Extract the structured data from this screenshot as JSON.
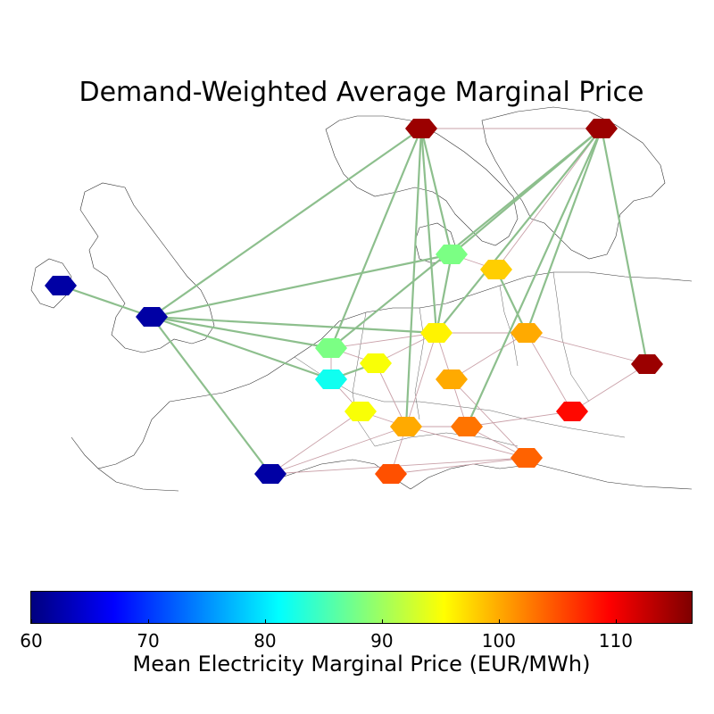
{
  "title": "Demand-Weighted Average Marginal Price",
  "colorbar": {
    "label": "Mean Electricity Marginal Price (EUR/MWh)",
    "min": 60,
    "max": 116.5,
    "ticks": [
      "60",
      "70",
      "80",
      "90",
      "100",
      "110"
    ],
    "colormap": "jet",
    "colors": [
      "#00007f",
      "#0000ff",
      "#007fff",
      "#00ffff",
      "#7fff7f",
      "#ffff00",
      "#ff7f00",
      "#ff0000",
      "#7f0000"
    ]
  },
  "nodes": [
    {
      "id": "IE",
      "price": 62
    },
    {
      "id": "GB",
      "price": 62
    },
    {
      "id": "NO",
      "price": 115
    },
    {
      "id": "SE",
      "price": 115
    },
    {
      "id": "DK",
      "price": 88
    },
    {
      "id": "DK-E",
      "price": 98
    },
    {
      "id": "NL",
      "price": 88
    },
    {
      "id": "BE",
      "price": 82
    },
    {
      "id": "LU",
      "price": 95
    },
    {
      "id": "DE",
      "price": 96
    },
    {
      "id": "PL",
      "price": 100
    },
    {
      "id": "LT",
      "price": 115
    },
    {
      "id": "CZ",
      "price": 100
    },
    {
      "id": "FR",
      "price": 95
    },
    {
      "id": "CH",
      "price": 100
    },
    {
      "id": "AT",
      "price": 103
    },
    {
      "id": "HU",
      "price": 109
    },
    {
      "id": "SI",
      "price": 104
    },
    {
      "id": "IT",
      "price": 105
    },
    {
      "id": "ES",
      "price": 62
    }
  ],
  "links": {
    "dc": [
      [
        "IE",
        "GB"
      ],
      [
        "GB",
        "NO"
      ],
      [
        "GB",
        "DK"
      ],
      [
        "GB",
        "NL"
      ],
      [
        "GB",
        "BE"
      ],
      [
        "GB",
        "DE"
      ],
      [
        "GB",
        "ES"
      ],
      [
        "NO",
        "NL"
      ],
      [
        "NO",
        "DE"
      ],
      [
        "NO",
        "DK"
      ],
      [
        "NO",
        "CH"
      ],
      [
        "SE",
        "DK"
      ],
      [
        "SE",
        "PL"
      ],
      [
        "SE",
        "LT"
      ],
      [
        "SE",
        "NL"
      ],
      [
        "SE",
        "DE"
      ],
      [
        "SE",
        "AT"
      ],
      [
        "DK",
        "DE"
      ],
      [
        "DK-E",
        "PL"
      ],
      [
        "BE",
        "LU"
      ]
    ],
    "ac": [
      [
        "NO",
        "SE"
      ],
      [
        "SE",
        "DK-E"
      ],
      [
        "DK",
        "DK-E"
      ],
      [
        "NL",
        "DE"
      ],
      [
        "NL",
        "BE"
      ],
      [
        "BE",
        "FR"
      ],
      [
        "NL",
        "LU"
      ],
      [
        "LU",
        "DE"
      ],
      [
        "DE",
        "PL"
      ],
      [
        "DE",
        "CZ"
      ],
      [
        "DE",
        "CH"
      ],
      [
        "PL",
        "LT"
      ],
      [
        "PL",
        "CZ"
      ],
      [
        "PL",
        "HU"
      ],
      [
        "CZ",
        "AT"
      ],
      [
        "LU",
        "CH"
      ],
      [
        "FR",
        "CH"
      ],
      [
        "CH",
        "AT"
      ],
      [
        "AT",
        "SI"
      ],
      [
        "AT",
        "HU"
      ],
      [
        "CH",
        "SI"
      ],
      [
        "HU",
        "LT"
      ],
      [
        "ES",
        "CH"
      ],
      [
        "ES",
        "SI"
      ],
      [
        "IT",
        "SI"
      ],
      [
        "CH",
        "IT"
      ],
      [
        "FR",
        "ES"
      ],
      [
        "CZ",
        "SI"
      ]
    ]
  }
}
